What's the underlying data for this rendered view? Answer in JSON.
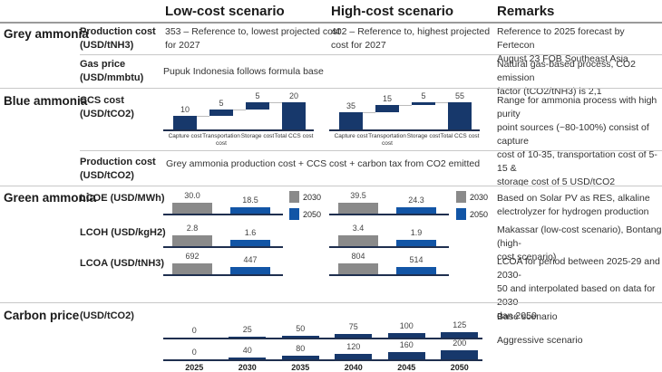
{
  "headers": {
    "low": "Low-cost scenario",
    "high": "High-cost scenario",
    "remarks": "Remarks"
  },
  "grey": {
    "title": "Grey ammonia",
    "production": {
      "label": [
        "Production cost",
        "(USD/tNH3)"
      ],
      "low": [
        "353 – Reference to, lowest projected cost",
        "for 2027"
      ],
      "high": [
        "402 – Reference to, highest projected",
        "cost for 2027"
      ],
      "remark": [
        "Reference to 2025 forecast by Fertecon",
        "August 23 FOB Southeast Asia"
      ]
    },
    "gas": {
      "label": [
        "Gas price",
        "(USD/mmbtu)"
      ],
      "low": "Pupuk Indonesia follows formula base",
      "remark": [
        "Natural gas-based process, CO2 emission",
        "factor (tCO2/tNH3) is 2,1"
      ]
    }
  },
  "blue": {
    "title": "Blue ammonia",
    "ccs": {
      "label": [
        "CCS cost",
        "(USD/tCO2)"
      ],
      "remark": [
        "Range for ammonia process with high purity",
        "point sources (~80-100%) consist of capture",
        "cost of 10-35, transportation cost of 5-15 &",
        "storage cost of 5 USD/tCO2"
      ]
    },
    "production": {
      "label": [
        "Production cost",
        "(USD/tCO2)"
      ],
      "text": "Grey ammonia production cost + CCS cost + carbon tax from CO2 emitted"
    }
  },
  "green": {
    "title": "Green ammonia",
    "rows": [
      {
        "label": "LCOE (USD/MWh)",
        "remark": [
          "Based on Solar PV as RES, alkaline",
          "electrolyzer for hydrogen production"
        ]
      },
      {
        "label": "LCOH (USD/kgH2)",
        "remark": [
          "Makassar (low-cost scenario), Bontang (high-",
          "cost scenario)"
        ]
      },
      {
        "label": "LCOA (USD/tNH3)",
        "remark": [
          "LCOA for period between 2025-29 and 2030-",
          "50 and interpolated based on data for 2030",
          "dan 2050"
        ]
      }
    ],
    "legend": [
      {
        "label": "2030",
        "color": "#8a8a8a"
      },
      {
        "label": "2050",
        "color": "#1255a6"
      }
    ]
  },
  "carbon": {
    "title": "Carbon price",
    "unit": "(USD/tCO2)",
    "remarks": [
      "Base scenario",
      "Aggressive scenario"
    ]
  },
  "chart_data": [
    {
      "type": "bar",
      "title": "CCS cost low-cost scenario (waterfall)",
      "categories": [
        "Capture cost",
        "Transportation cost",
        "Storage cost",
        "Total CCS cost"
      ],
      "values": [
        10,
        5,
        5,
        20
      ],
      "labels": [
        "10",
        "5",
        "5",
        "20"
      ]
    },
    {
      "type": "bar",
      "title": "CCS cost high-cost scenario (waterfall)",
      "categories": [
        "Capture cost",
        "Transportation cost",
        "Storage cost",
        "Total CCS cost"
      ],
      "values": [
        35,
        15,
        5,
        55
      ],
      "labels": [
        "35",
        "15",
        "5",
        "55"
      ]
    },
    {
      "type": "bar",
      "title": "Green ammonia low-cost",
      "categories": [
        "LCOE",
        "LCOH",
        "LCOA"
      ],
      "series": [
        {
          "name": "2030",
          "values": [
            30.0,
            2.8,
            692
          ],
          "labels": [
            "30.0",
            "2.8",
            "692"
          ]
        },
        {
          "name": "2050",
          "values": [
            18.5,
            1.6,
            447
          ],
          "labels": [
            "18.5",
            "1.6",
            "447"
          ]
        }
      ]
    },
    {
      "type": "bar",
      "title": "Green ammonia high-cost",
      "categories": [
        "LCOE",
        "LCOH",
        "LCOA"
      ],
      "series": [
        {
          "name": "2030",
          "values": [
            39.5,
            3.4,
            804
          ],
          "labels": [
            "39.5",
            "3.4",
            "804"
          ]
        },
        {
          "name": "2050",
          "values": [
            24.3,
            1.9,
            514
          ],
          "labels": [
            "24.3",
            "1.9",
            "514"
          ]
        }
      ]
    },
    {
      "type": "bar",
      "title": "Carbon price (USD/tCO2)",
      "categories": [
        "2025",
        "2030",
        "2035",
        "2040",
        "2045",
        "2050"
      ],
      "series": [
        {
          "name": "Base scenario",
          "values": [
            0,
            25,
            50,
            75,
            100,
            125
          ]
        },
        {
          "name": "Aggressive scenario",
          "values": [
            0,
            40,
            80,
            120,
            160,
            200
          ]
        }
      ]
    }
  ]
}
